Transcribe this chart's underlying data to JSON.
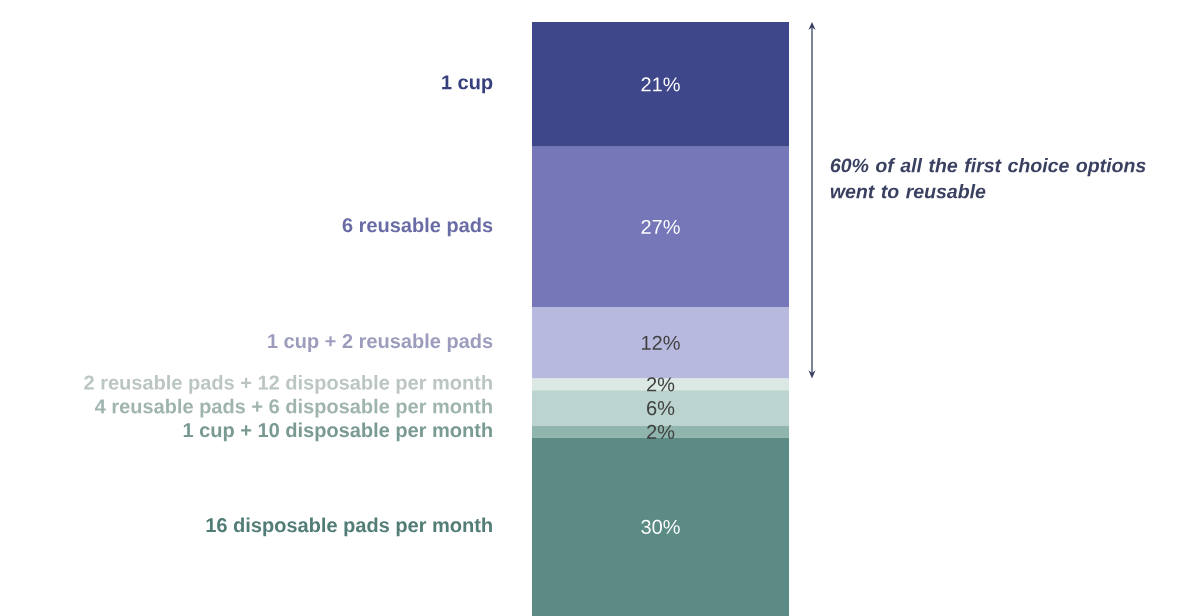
{
  "chart_data": {
    "type": "bar",
    "stacked": true,
    "categories": [
      null
    ],
    "ylim": [
      0,
      100
    ],
    "series": [
      {
        "name": "16 disposable pads per month",
        "color": "#5b8b84",
        "values": [
          30
        ],
        "value_labels": [
          "30%"
        ]
      },
      {
        "name": "1 cup + 10 disposable per month",
        "color": "#8fb5ad",
        "values": [
          2
        ],
        "value_labels": [
          "2%"
        ]
      },
      {
        "name": "4 reusable pads + 6 disposable per month",
        "color": "#bcd4cf",
        "values": [
          6
        ],
        "value_labels": [
          "6%"
        ]
      },
      {
        "name": "2 reusable pads + 12 disposable per month",
        "color": "#dce8e4",
        "values": [
          2
        ],
        "value_labels": [
          "2%"
        ]
      },
      {
        "name": "1 cup + 2 reusable pads",
        "color": "#b8b9df",
        "values": [
          12
        ],
        "value_labels": [
          "12%"
        ]
      },
      {
        "name": "6 reusable pads",
        "color": "#7577b8",
        "values": [
          27
        ],
        "value_labels": [
          "27%"
        ]
      },
      {
        "name": "1 cup",
        "color": "#3f478b",
        "values": [
          21
        ],
        "value_labels": [
          "21%"
        ]
      }
    ],
    "annotations": [
      "60% of all the first choice options went to reusable"
    ]
  }
}
